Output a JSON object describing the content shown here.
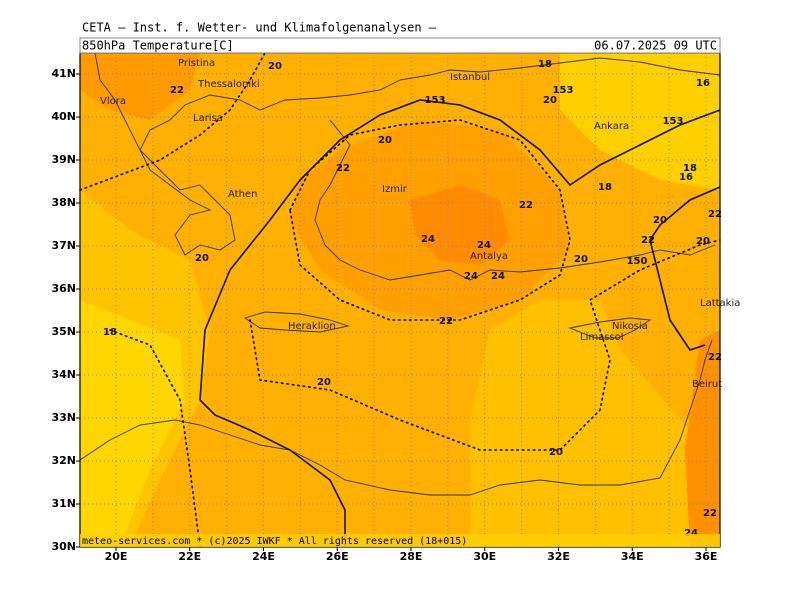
{
  "header": {
    "institute": "CETA — Inst. f. Wetter- und Klimafolgenanalysen —",
    "field": "850hPa Temperature[C]",
    "valid_time": "06.07.2025 09 UTC"
  },
  "axes": {
    "latitude_labels": [
      "41N",
      "40N",
      "39N",
      "38N",
      "37N",
      "36N",
      "35N",
      "34N",
      "33N",
      "32N",
      "31N",
      "30N"
    ],
    "longitude_labels": [
      "20E",
      "22E",
      "24E",
      "26E",
      "28E",
      "30E",
      "32E",
      "34E",
      "36E"
    ]
  },
  "cities": [
    "Pristina",
    "Thessaloniki",
    "Vlora",
    "Larisa",
    "Istanbul",
    "Ankara",
    "Athen",
    "Izmir",
    "Antalya",
    "Heraklion",
    "Nikosia",
    "Limassol",
    "Lattakia",
    "Beirut"
  ],
  "contour_labels": [
    "20",
    "22",
    "18",
    "153",
    "20",
    "16",
    "153",
    "153",
    "20",
    "22",
    "18",
    "16",
    "18",
    "22",
    "20",
    "22",
    "24",
    "24",
    "22",
    "20",
    "20",
    "20",
    "150",
    "24",
    "24",
    "22",
    "18",
    "22",
    "20",
    "20",
    "22",
    "24"
  ],
  "footer": "meteo-services.com * (c)2025 IWKF * All rights reserved (18+015)"
}
